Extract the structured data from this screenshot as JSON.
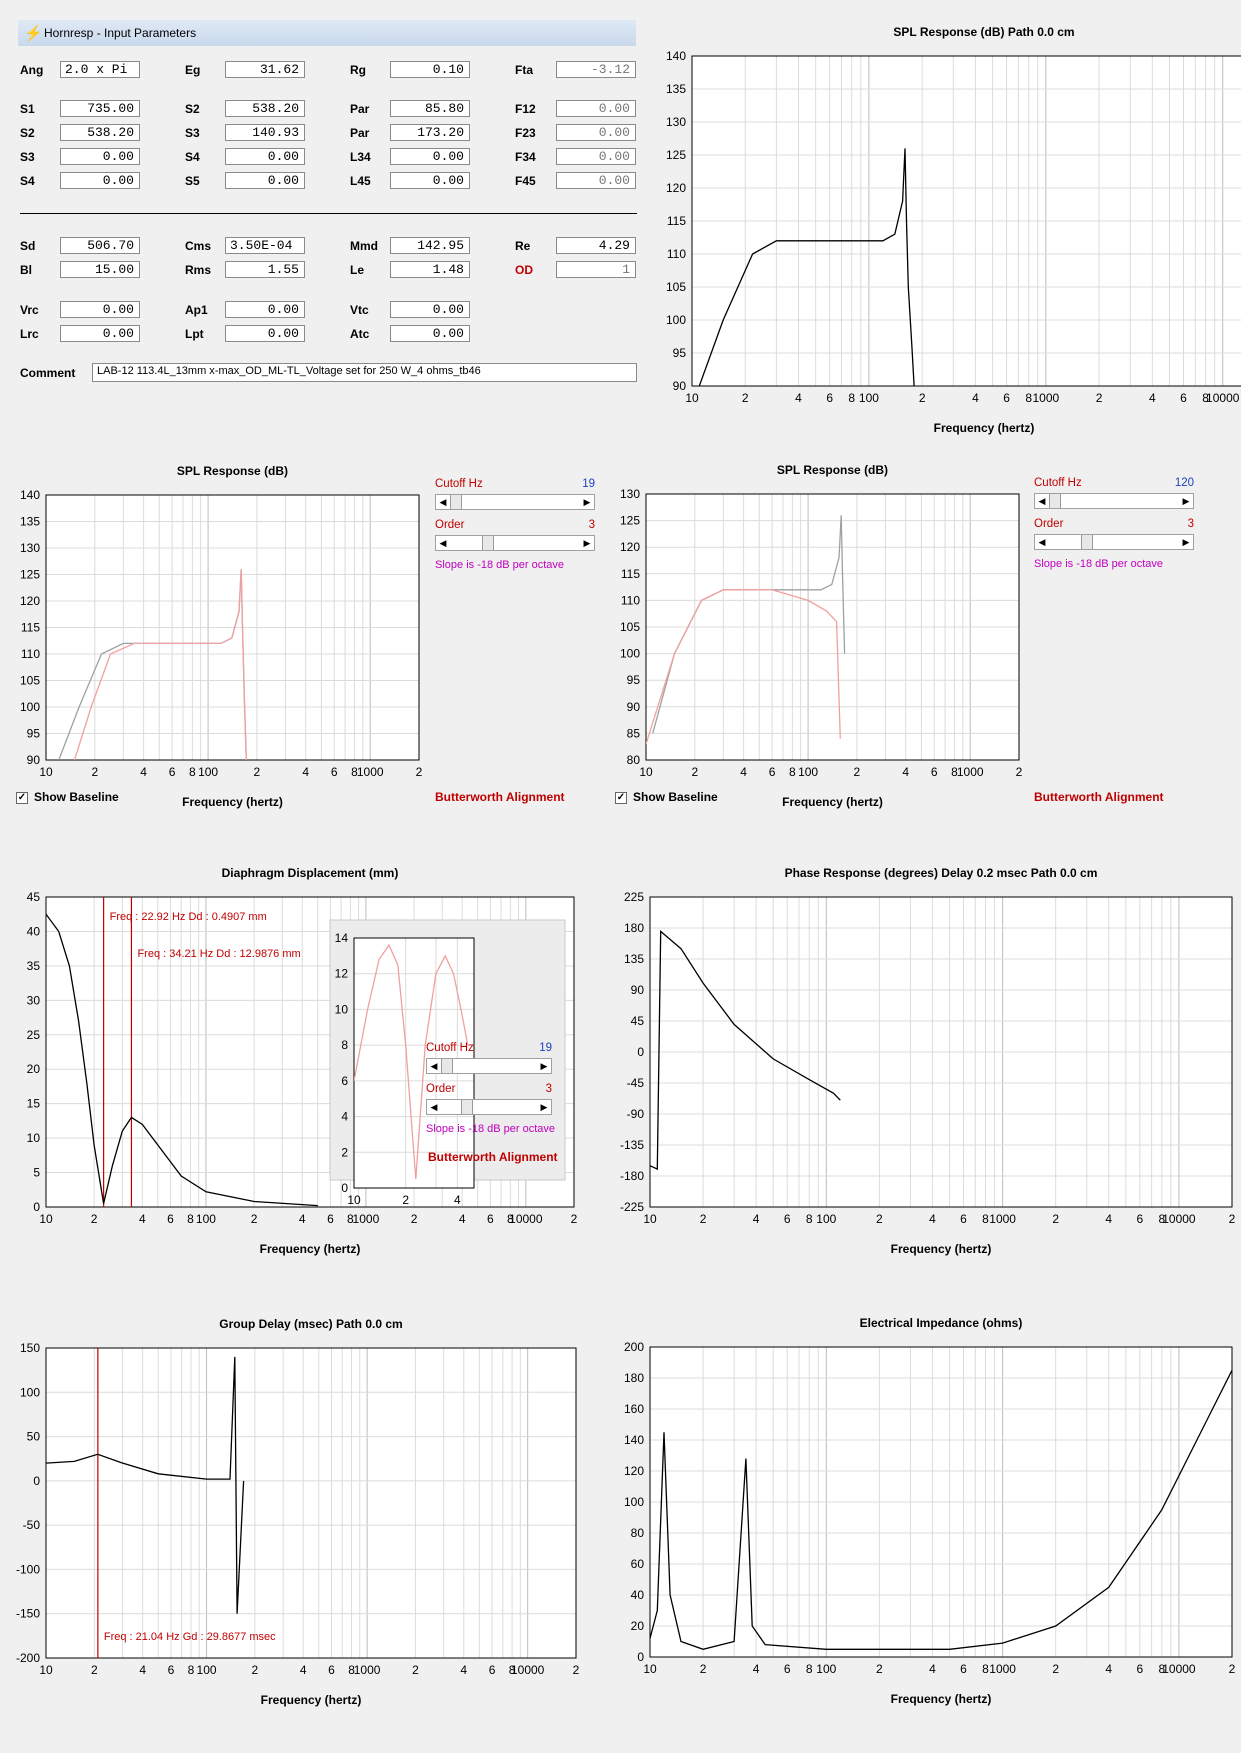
{
  "window": {
    "title": "Hornresp - Input Parameters"
  },
  "params": {
    "rows": [
      [
        {
          "l": "Ang",
          "v": "2.0 x Pi",
          "left": true
        },
        {
          "l": "Eg",
          "v": "31.62"
        },
        {
          "l": "Rg",
          "v": "0.10"
        },
        {
          "l": "Fta",
          "v": "-3.12",
          "dis": true
        }
      ],
      [
        {
          "l": "S1",
          "v": "735.00"
        },
        {
          "l": "S2",
          "v": "538.20"
        },
        {
          "l": "Par",
          "v": "85.80"
        },
        {
          "l": "F12",
          "v": "0.00",
          "dis": true
        }
      ],
      [
        {
          "l": "S2",
          "v": "538.20"
        },
        {
          "l": "S3",
          "v": "140.93"
        },
        {
          "l": "Par",
          "v": "173.20"
        },
        {
          "l": "F23",
          "v": "0.00",
          "dis": true
        }
      ],
      [
        {
          "l": "S3",
          "v": "0.00"
        },
        {
          "l": "S4",
          "v": "0.00"
        },
        {
          "l": "L34",
          "v": "0.00"
        },
        {
          "l": "F34",
          "v": "0.00",
          "dis": true
        }
      ],
      [
        {
          "l": "S4",
          "v": "0.00"
        },
        {
          "l": "S5",
          "v": "0.00"
        },
        {
          "l": "L45",
          "v": "0.00"
        },
        {
          "l": "F45",
          "v": "0.00",
          "dis": true
        }
      ],
      [
        {
          "l": "Sd",
          "v": "506.70"
        },
        {
          "l": "Cms",
          "v": "3.50E-04",
          "left": true
        },
        {
          "l": "Mmd",
          "v": "142.95"
        },
        {
          "l": "Re",
          "v": "4.29"
        }
      ],
      [
        {
          "l": "Bl",
          "v": "15.00"
        },
        {
          "l": "Rms",
          "v": "1.55"
        },
        {
          "l": "Le",
          "v": "1.48"
        },
        {
          "l": "OD",
          "v": "1",
          "red": true,
          "dis": true
        }
      ],
      [
        {
          "l": "Vrc",
          "v": "0.00"
        },
        {
          "l": "Ap1",
          "v": "0.00"
        },
        {
          "l": "Vtc",
          "v": "0.00"
        }
      ],
      [
        {
          "l": "Lrc",
          "v": "0.00"
        },
        {
          "l": "Lpt",
          "v": "0.00"
        },
        {
          "l": "Atc",
          "v": "0.00"
        }
      ]
    ],
    "comment_label": "Comment",
    "comment": "LAB-12 113.4L_13mm x-max_OD_ML-TL_Voltage set for 250 W_4 ohms_tb46"
  },
  "controls": {
    "cutoff_label": "Cutoff  Hz",
    "order_label": "Order",
    "slope": "Slope is -18 dB per octave",
    "butterworth": "Butterworth Alignment",
    "show_baseline": "Show Baseline",
    "left": {
      "cutoff": "19",
      "order": "3"
    },
    "right": {
      "cutoff": "120",
      "order": "3"
    },
    "inset": {
      "cutoff": "19",
      "order": "3"
    }
  },
  "freq_ticks_full": [
    "10",
    "2",
    "4",
    "6",
    "8",
    "100",
    "2",
    "4",
    "6",
    "8",
    "1000",
    "2",
    "4",
    "6",
    "8",
    "10000",
    "2"
  ],
  "freq_ticks_mid": [
    "10",
    "2",
    "4",
    "6",
    "8",
    "100",
    "2",
    "4",
    "6",
    "8",
    "1000",
    "2"
  ],
  "freq_ticks_inset": [
    "10",
    "2",
    "4"
  ],
  "chart_data": [
    {
      "id": "spl_main",
      "type": "line",
      "title": "SPL Response (dB)    Path 0.0 cm",
      "xlabel": "Frequency (hertz)",
      "ylim": [
        90,
        140
      ],
      "yticks": [
        "90",
        "95",
        "100",
        "105",
        "110",
        "115",
        "120",
        "125",
        "130",
        "135",
        "140"
      ],
      "xlog": [
        10,
        20000
      ],
      "series": [
        {
          "color": "#000000",
          "points": [
            [
              11,
              90
            ],
            [
              15,
              100
            ],
            [
              22,
              110
            ],
            [
              30,
              112
            ],
            [
              60,
              112
            ],
            [
              120,
              112
            ],
            [
              140,
              113
            ],
            [
              155,
              118
            ],
            [
              160,
              126
            ],
            [
              163,
              115
            ],
            [
              167,
              105
            ],
            [
              175,
              96
            ],
            [
              180,
              90
            ]
          ]
        }
      ]
    },
    {
      "id": "spl_left",
      "type": "line",
      "title": "SPL Response (dB)",
      "xlabel": "Frequency (hertz)",
      "ylim": [
        90,
        140
      ],
      "yticks": [
        "90",
        "95",
        "100",
        "105",
        "110",
        "115",
        "120",
        "125",
        "130",
        "135",
        "140"
      ],
      "xlog": [
        10,
        2000
      ],
      "series": [
        {
          "color": "#a0a0a0",
          "points": [
            [
              12,
              90
            ],
            [
              16,
              100
            ],
            [
              22,
              110
            ],
            [
              30,
              112
            ],
            [
              60,
              112
            ],
            [
              120,
              112
            ],
            [
              140,
              113
            ],
            [
              155,
              118
            ],
            [
              160,
              126
            ],
            [
              163,
              115
            ],
            [
              168,
              100
            ],
            [
              172,
              90
            ]
          ]
        },
        {
          "color": "#f0a0a0",
          "points": [
            [
              15,
              90
            ],
            [
              19,
              100
            ],
            [
              25,
              110
            ],
            [
              35,
              112
            ],
            [
              60,
              112
            ],
            [
              120,
              112
            ],
            [
              140,
              113
            ],
            [
              155,
              118
            ],
            [
              160,
              126
            ],
            [
              163,
              115
            ],
            [
              168,
              100
            ],
            [
              172,
              90
            ]
          ]
        }
      ]
    },
    {
      "id": "spl_right",
      "type": "line",
      "title": "SPL Response (dB)",
      "xlabel": "Frequency (hertz)",
      "ylim": [
        80,
        130
      ],
      "yticks": [
        "80",
        "85",
        "90",
        "95",
        "100",
        "105",
        "110",
        "115",
        "120",
        "125",
        "130"
      ],
      "xlog": [
        10,
        2000
      ],
      "series": [
        {
          "color": "#a0a0a0",
          "points": [
            [
              11,
              85
            ],
            [
              15,
              100
            ],
            [
              22,
              110
            ],
            [
              30,
              112
            ],
            [
              60,
              112
            ],
            [
              120,
              112
            ],
            [
              140,
              113
            ],
            [
              155,
              118
            ],
            [
              160,
              126
            ],
            [
              163,
              115
            ],
            [
              168,
              100
            ]
          ]
        },
        {
          "color": "#f0a0a0",
          "points": [
            [
              10,
              83
            ],
            [
              15,
              100
            ],
            [
              22,
              110
            ],
            [
              30,
              112
            ],
            [
              60,
              112
            ],
            [
              100,
              110
            ],
            [
              130,
              108
            ],
            [
              150,
              106
            ],
            [
              158,
              84
            ]
          ]
        }
      ]
    },
    {
      "id": "displacement",
      "type": "line",
      "title": "Diaphragm Displacement (mm)",
      "xlabel": "Frequency (hertz)",
      "ylim": [
        0,
        45
      ],
      "yticks": [
        "0",
        "5",
        "10",
        "15",
        "20",
        "25",
        "30",
        "35",
        "40",
        "45"
      ],
      "xlog": [
        10,
        20000
      ],
      "markers": [
        {
          "freq": 22.92,
          "label": "Freq : 22.92 Hz     Dd : 0.4907 mm"
        },
        {
          "freq": 34.21,
          "label": "Freq : 34.21 Hz     Dd : 12.9876 mm"
        }
      ],
      "series": [
        {
          "color": "#000000",
          "points": [
            [
              10,
              42.5
            ],
            [
              12,
              40
            ],
            [
              14,
              35
            ],
            [
              16,
              27
            ],
            [
              18,
              18
            ],
            [
              20,
              9
            ],
            [
              22.9,
              0.5
            ],
            [
              26,
              6
            ],
            [
              30,
              11
            ],
            [
              34.2,
              13
            ],
            [
              40,
              12
            ],
            [
              50,
              9
            ],
            [
              70,
              4.5
            ],
            [
              100,
              2.2
            ],
            [
              200,
              0.8
            ],
            [
              500,
              0.2
            ]
          ]
        }
      ]
    },
    {
      "id": "displacement_inset",
      "type": "line",
      "ylim": [
        0,
        14
      ],
      "yticks": [
        "0",
        "2",
        "4",
        "6",
        "8",
        "10",
        "12",
        "14"
      ],
      "xlog": [
        10,
        50
      ],
      "series": [
        {
          "color": "#f0a0a0",
          "points": [
            [
              10,
              6
            ],
            [
              12,
              10
            ],
            [
              14,
              12.8
            ],
            [
              16,
              13.6
            ],
            [
              18,
              12.5
            ],
            [
              20,
              8
            ],
            [
              22.9,
              0.5
            ],
            [
              26,
              8
            ],
            [
              30,
              12
            ],
            [
              34,
              13
            ],
            [
              38,
              12
            ],
            [
              42,
              10
            ],
            [
              46,
              8
            ]
          ]
        }
      ]
    },
    {
      "id": "phase",
      "type": "line",
      "title": "Phase Response (degrees)    Delay 0.2 msec    Path 0.0 cm",
      "xlabel": "Frequency (hertz)",
      "ylim": [
        -225,
        225
      ],
      "yticks": [
        "-225",
        "-180",
        "-135",
        "-90",
        "-45",
        "0",
        "45",
        "90",
        "135",
        "180",
        "225"
      ],
      "xlog": [
        10,
        20000
      ],
      "series": [
        {
          "color": "#000000",
          "points": [
            [
              10,
              -165
            ],
            [
              11,
              -170
            ],
            [
              11.5,
              175
            ],
            [
              15,
              150
            ],
            [
              20,
              100
            ],
            [
              30,
              40
            ],
            [
              50,
              -10
            ],
            [
              80,
              -40
            ],
            [
              110,
              -60
            ],
            [
              120,
              -70
            ]
          ]
        }
      ]
    },
    {
      "id": "group_delay",
      "type": "line",
      "title": "Group Delay (msec)    Path 0.0 cm",
      "xlabel": "Frequency (hertz)",
      "ylim": [
        -200,
        150
      ],
      "yticks": [
        "-200",
        "-150",
        "-100",
        "-50",
        "0",
        "50",
        "100",
        "150"
      ],
      "xlog": [
        10,
        20000
      ],
      "markers": [
        {
          "freq": 21.04,
          "label": "Freq : 21.04 Hz     Gd : 29.8677 msec"
        }
      ],
      "series": [
        {
          "color": "#000000",
          "points": [
            [
              10,
              20
            ],
            [
              15,
              22
            ],
            [
              21,
              30
            ],
            [
              30,
              20
            ],
            [
              50,
              8
            ],
            [
              100,
              2
            ],
            [
              140,
              2
            ],
            [
              150,
              140
            ],
            [
              155,
              -150
            ],
            [
              170,
              0
            ]
          ]
        }
      ]
    },
    {
      "id": "impedance",
      "type": "line",
      "title": "Electrical Impedance (ohms)",
      "xlabel": "Frequency (hertz)",
      "ylim": [
        0,
        200
      ],
      "yticks": [
        "0",
        "20",
        "40",
        "60",
        "80",
        "100",
        "120",
        "140",
        "160",
        "180",
        "200"
      ],
      "xlog": [
        10,
        20000
      ],
      "series": [
        {
          "color": "#000000",
          "points": [
            [
              10,
              12
            ],
            [
              11,
              30
            ],
            [
              12,
              145
            ],
            [
              13,
              40
            ],
            [
              15,
              10
            ],
            [
              20,
              5
            ],
            [
              30,
              10
            ],
            [
              35,
              128
            ],
            [
              38,
              20
            ],
            [
              45,
              8
            ],
            [
              100,
              5
            ],
            [
              500,
              5
            ],
            [
              1000,
              9
            ],
            [
              2000,
              20
            ],
            [
              4000,
              45
            ],
            [
              8000,
              95
            ],
            [
              14000,
              150
            ],
            [
              20000,
              185
            ]
          ]
        }
      ]
    }
  ]
}
